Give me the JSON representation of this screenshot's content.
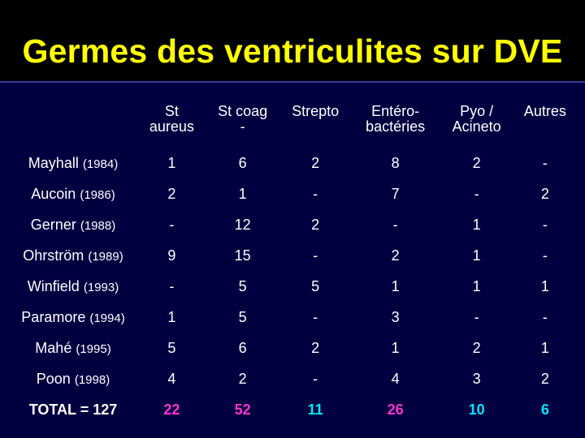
{
  "title": "Germes des ventriculites sur DVE",
  "columns": [
    {
      "line1": "St",
      "line2": "aureus"
    },
    {
      "line1": "St coag",
      "line2": "-"
    },
    {
      "line1": "Strepto",
      "line2": ""
    },
    {
      "line1": "Entéro-",
      "line2": "bactéries"
    },
    {
      "line1": "Pyo /",
      "line2": "Acineto"
    },
    {
      "line1": "Autres",
      "line2": ""
    }
  ],
  "rows": [
    {
      "name": "Mayhall",
      "year": "(1984)",
      "values": [
        "1",
        "6",
        "2",
        "8",
        "2",
        "-"
      ]
    },
    {
      "name": "Aucoin",
      "year": "(1986)",
      "values": [
        "2",
        "1",
        "-",
        "7",
        "-",
        "2"
      ]
    },
    {
      "name": "Gerner",
      "year": "(1988)",
      "values": [
        "-",
        "12",
        "2",
        "-",
        "1",
        "-"
      ]
    },
    {
      "name": "Ohrström",
      "year": "(1989)",
      "values": [
        "9",
        "15",
        "-",
        "2",
        "1",
        "-"
      ]
    },
    {
      "name": "Winfield",
      "year": "(1993)",
      "values": [
        "-",
        "5",
        "5",
        "1",
        "1",
        "1"
      ]
    },
    {
      "name": "Paramore",
      "year": "(1994)",
      "values": [
        "1",
        "5",
        "-",
        "3",
        "-",
        "-"
      ]
    },
    {
      "name": "Mahé",
      "year": "(1995)",
      "values": [
        "5",
        "6",
        "2",
        "1",
        "2",
        "1"
      ]
    },
    {
      "name": "Poon",
      "year": "(1998)",
      "values": [
        "4",
        "2",
        "-",
        "4",
        "3",
        "2"
      ]
    }
  ],
  "total": {
    "label": "TOTAL = 127",
    "values": [
      "22",
      "52",
      "11",
      "26",
      "10",
      "6"
    ]
  },
  "colors": {
    "title": "#ffff00",
    "background": "#000040",
    "text": "#ffffff",
    "total_stAureus": "#ff33cc",
    "total_stCoag": "#ff33cc",
    "total_others": "#00e6ff"
  }
}
